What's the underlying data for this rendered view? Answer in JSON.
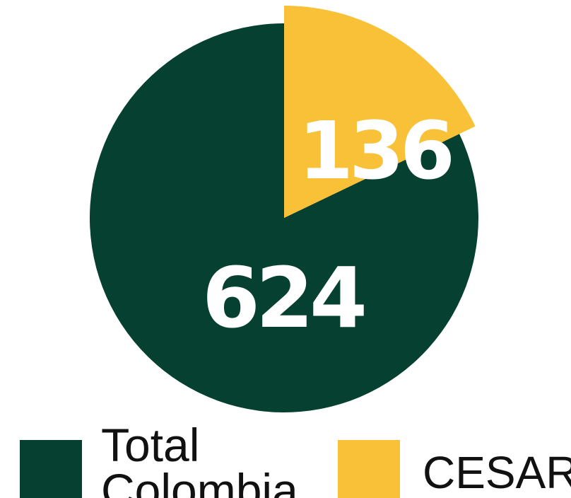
{
  "chart_data": {
    "type": "pie",
    "slices": [
      {
        "label": "Total Colombia",
        "value": 624,
        "color": "#054030"
      },
      {
        "label": "CESAR",
        "value": 136,
        "color": "#F8C138"
      }
    ],
    "data_labels": [
      "624",
      "136"
    ],
    "legend": {
      "placement": "bottom",
      "items": [
        {
          "line1": "Total",
          "line2": "Colombia",
          "color": "#054030"
        },
        {
          "line1": "CESAR",
          "line2": "",
          "color": "#F8C138"
        }
      ]
    },
    "title": ""
  }
}
